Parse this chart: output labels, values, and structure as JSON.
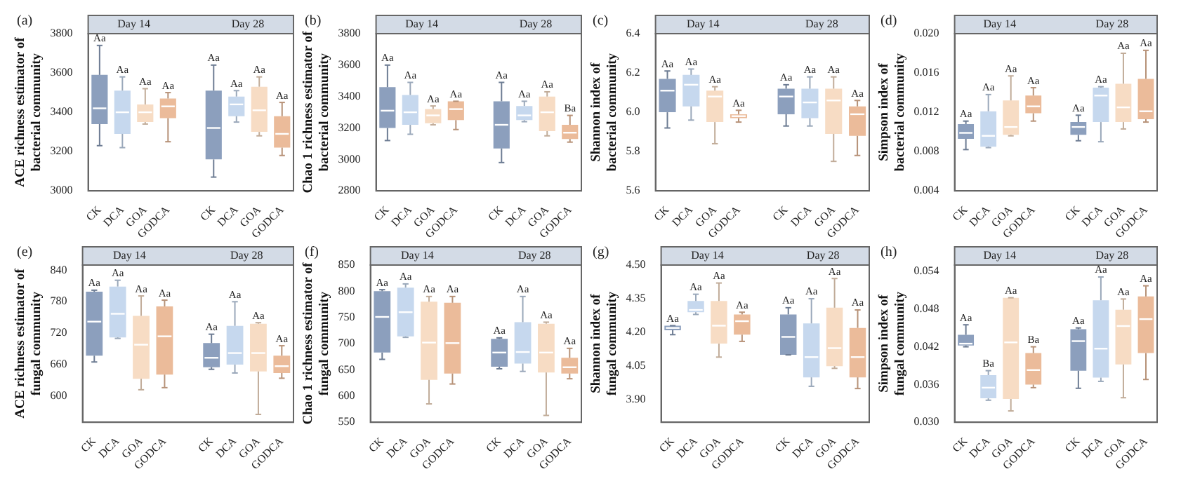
{
  "chart_data": [
    {
      "type": "box",
      "title": "(a)",
      "ylabel": "ACE richness estimator of\nbacterial community",
      "categories": [
        "CK",
        "DCA",
        "GOA",
        "GODCA",
        null,
        "CK",
        "DCA",
        "GOA",
        "GODCA"
      ],
      "colors": [
        "#8c9fbd",
        "#c6d8ee",
        "#f7dcc4",
        "#ebbb9a",
        null,
        "#8c9fbd",
        "#c6d8ee",
        "#f7dcc4",
        "#ebbb9a"
      ],
      "boxes": [
        {
          "low": 3230,
          "q1": 3340,
          "median": 3420,
          "q3": 3590,
          "high": 3740
        },
        {
          "low": 3220,
          "q1": 3290,
          "median": 3400,
          "q3": 3510,
          "high": 3580
        },
        {
          "low": 3340,
          "q1": 3350,
          "median": 3400,
          "q3": 3440,
          "high": 3520
        },
        {
          "low": 3250,
          "q1": 3370,
          "median": 3430,
          "q3": 3470,
          "high": 3500
        },
        null,
        {
          "low": 3070,
          "q1": 3160,
          "median": 3320,
          "q3": 3510,
          "high": 3640
        },
        {
          "low": 3350,
          "q1": 3380,
          "median": 3440,
          "q3": 3480,
          "high": 3510
        },
        {
          "low": 3280,
          "q1": 3300,
          "median": 3410,
          "q3": 3530,
          "high": 3580
        },
        {
          "low": 3180,
          "q1": 3220,
          "median": 3290,
          "q3": 3380,
          "high": 3450
        }
      ],
      "ylim": [
        3000,
        3800
      ],
      "yticks": [
        3000,
        3200,
        3400,
        3600,
        3800
      ],
      "annotations": [
        "Day 14",
        "Day 28",
        "Aa",
        "Aa",
        "Aa",
        "Aa",
        "Aa",
        "Aa",
        "Aa",
        "Aa"
      ]
    },
    {
      "type": "box",
      "title": "(b)",
      "ylabel": "Chao 1 richness estimator of\nbacterial community",
      "categories": [
        "CK",
        "DCA",
        "GOA",
        "GODCA",
        null,
        "CK",
        "DCA",
        "GOA",
        "GODCA"
      ],
      "colors": [
        "#8c9fbd",
        "#c6d8ee",
        "#f7dcc4",
        "#ebbb9a",
        null,
        "#8c9fbd",
        "#c6d8ee",
        "#f7dcc4",
        "#ebbb9a"
      ],
      "boxes": [
        {
          "low": 3120,
          "q1": 3200,
          "median": 3310,
          "q3": 3460,
          "high": 3600
        },
        {
          "low": 3160,
          "q1": 3220,
          "median": 3300,
          "q3": 3410,
          "high": 3490
        },
        {
          "low": 3220,
          "q1": 3230,
          "median": 3280,
          "q3": 3320,
          "high": 3340
        },
        {
          "low": 3190,
          "q1": 3250,
          "median": 3320,
          "q3": 3370,
          "high": 3370
        },
        null,
        {
          "low": 2980,
          "q1": 3070,
          "median": 3220,
          "q3": 3370,
          "high": 3490
        },
        {
          "low": 3240,
          "q1": 3250,
          "median": 3280,
          "q3": 3340,
          "high": 3370
        },
        {
          "low": 3150,
          "q1": 3180,
          "median": 3300,
          "q3": 3400,
          "high": 3430
        },
        {
          "low": 3110,
          "q1": 3130,
          "median": 3170,
          "q3": 3220,
          "high": 3280
        }
      ],
      "ylim": [
        2800,
        3800
      ],
      "yticks": [
        2800,
        3000,
        3200,
        3400,
        3600,
        3800
      ],
      "annotations": [
        "Day 14",
        "Day 28",
        "Aa",
        "Aa",
        "Aa",
        "Aa",
        "Aa",
        "Aa",
        "Aa",
        "Ba"
      ]
    },
    {
      "type": "box",
      "title": "(c)",
      "ylabel": "Shannon index of\nbacterial community",
      "categories": [
        "CK",
        "DCA",
        "GOA",
        "GODCA",
        null,
        "CK",
        "DCA",
        "GOA",
        "GODCA"
      ],
      "colors": [
        "#8c9fbd",
        "#c6d8ee",
        "#f7dcc4",
        "#ebbb9a",
        null,
        "#8c9fbd",
        "#c6d8ee",
        "#f7dcc4",
        "#ebbb9a"
      ],
      "boxes": [
        {
          "low": 5.92,
          "q1": 6.0,
          "median": 6.11,
          "q3": 6.17,
          "high": 6.21
        },
        {
          "low": 5.96,
          "q1": 6.03,
          "median": 6.14,
          "q3": 6.19,
          "high": 6.22
        },
        {
          "low": 5.84,
          "q1": 5.95,
          "median": 6.08,
          "q3": 6.11,
          "high": 6.13
        },
        {
          "low": 5.95,
          "q1": 5.97,
          "median": 5.98,
          "q3": 5.99,
          "high": 6.01
        },
        null,
        {
          "low": 5.93,
          "q1": 5.99,
          "median": 6.08,
          "q3": 6.12,
          "high": 6.14
        },
        {
          "low": 5.93,
          "q1": 5.97,
          "median": 6.05,
          "q3": 6.12,
          "high": 6.18
        },
        {
          "low": 5.75,
          "q1": 5.89,
          "median": 6.06,
          "q3": 6.12,
          "high": 6.18
        },
        {
          "low": 5.78,
          "q1": 5.88,
          "median": 5.99,
          "q3": 6.03,
          "high": 6.06
        }
      ],
      "ylim": [
        5.6,
        6.4
      ],
      "yticks": [
        5.6,
        5.8,
        {
          "value": 6,
          "label": "6.0"
        },
        6.2,
        6.4
      ],
      "annotations": [
        "Day 14",
        "Day 28",
        "Aa",
        "Aa",
        "Aa",
        "Aa",
        "Aa",
        "Aa",
        "Aa",
        "Aa"
      ]
    },
    {
      "type": "box",
      "title": "(d)",
      "ylabel": "Simpson index of\nbacterial community",
      "categories": [
        "CK",
        "DCA",
        "GOA",
        "GODCA",
        null,
        "CK",
        "DCA",
        "GOA",
        "GODCA"
      ],
      "colors": [
        "#8c9fbd",
        "#c6d8ee",
        "#f7dcc4",
        "#ebbb9a",
        null,
        "#8c9fbd",
        "#c6d8ee",
        "#f7dcc4",
        "#ebbb9a"
      ],
      "boxes": [
        {
          "low": 0.0082,
          "q1": 0.0093,
          "median": 0.0099,
          "q3": 0.0108,
          "high": 0.0111
        },
        {
          "low": 0.0084,
          "q1": 0.0085,
          "median": 0.0096,
          "q3": 0.0121,
          "high": 0.0138
        },
        {
          "low": 0.0096,
          "q1": 0.0097,
          "median": 0.0105,
          "q3": 0.0132,
          "high": 0.0157
        },
        {
          "low": 0.0111,
          "q1": 0.0119,
          "median": 0.0126,
          "q3": 0.0137,
          "high": 0.0145
        },
        null,
        {
          "low": 0.0091,
          "q1": 0.0097,
          "median": 0.0105,
          "q3": 0.011,
          "high": 0.0117
        },
        {
          "low": 0.009,
          "q1": 0.011,
          "median": 0.0137,
          "q3": 0.0145,
          "high": 0.0146
        },
        {
          "low": 0.0103,
          "q1": 0.011,
          "median": 0.0125,
          "q3": 0.0149,
          "high": 0.018
        },
        {
          "low": 0.011,
          "q1": 0.0113,
          "median": 0.0121,
          "q3": 0.0154,
          "high": 0.0183
        }
      ],
      "ylim": [
        0.004,
        0.02
      ],
      "yticks": [
        0.004,
        0.008,
        0.012,
        0.016,
        {
          "value": 0.02,
          "label": "0.020"
        }
      ],
      "annotations": [
        "Day 14",
        "Day 28",
        "Aa",
        "Aa",
        "Aa",
        "Aa",
        "Aa",
        "Aa",
        "Aa",
        "Aa"
      ]
    },
    {
      "type": "box",
      "title": "(e)",
      "ylabel": "ACE richness estimator of\nfungal community",
      "categories": [
        "CK",
        "DCA",
        "GOA",
        "GODCA",
        null,
        "CK",
        "DCA",
        "GOA",
        "GODCA"
      ],
      "colors": [
        "#8c9fbd",
        "#c6d8ee",
        "#f7dcc4",
        "#ebbb9a",
        null,
        "#8c9fbd",
        "#c6d8ee",
        "#f7dcc4",
        "#ebbb9a"
      ],
      "boxes": [
        {
          "low": 665,
          "q1": 677,
          "median": 742,
          "q3": 799,
          "high": 802
        },
        {
          "low": 710,
          "q1": 712,
          "median": 757,
          "q3": 809,
          "high": 821
        },
        {
          "low": 612,
          "q1": 633,
          "median": 698,
          "q3": 753,
          "high": 791
        },
        {
          "low": 616,
          "q1": 641,
          "median": 714,
          "q3": 771,
          "high": 783
        },
        null,
        {
          "low": 651,
          "q1": 655,
          "median": 673,
          "q3": 701,
          "high": 718
        },
        {
          "low": 644,
          "q1": 660,
          "median": 682,
          "q3": 734,
          "high": 780
        },
        {
          "low": 565,
          "q1": 647,
          "median": 682,
          "q3": 738,
          "high": 740
        },
        {
          "low": 634,
          "q1": 644,
          "median": 657,
          "q3": 677,
          "high": 696
        }
      ],
      "ylim": [
        550,
        850
      ],
      "yticks": [
        600,
        660,
        720,
        780,
        840
      ],
      "annotations": [
        "Day 14",
        "Day 28",
        "Aa",
        "Aa",
        "Aa",
        "Aa",
        "Aa",
        "Aa",
        "Aa",
        "Aa"
      ]
    },
    {
      "type": "box",
      "title": "(f)",
      "ylabel": "Chao 1 richness estimator of\nfungal community",
      "categories": [
        "CK",
        "DCA",
        "GOA",
        "GODCA",
        null,
        "CK",
        "DCA",
        "GOA",
        "GODCA"
      ],
      "colors": [
        "#8c9fbd",
        "#c6d8ee",
        "#f7dcc4",
        "#ebbb9a",
        null,
        "#8c9fbd",
        "#c6d8ee",
        "#f7dcc4",
        "#ebbb9a"
      ],
      "boxes": [
        {
          "low": 670,
          "q1": 683,
          "median": 751,
          "q3": 800,
          "high": 803
        },
        {
          "low": 712,
          "q1": 714,
          "median": 760,
          "q3": 807,
          "high": 814
        },
        {
          "low": 585,
          "q1": 631,
          "median": 702,
          "q3": 780,
          "high": 790
        },
        {
          "low": 623,
          "q1": 643,
          "median": 701,
          "q3": 778,
          "high": 790
        },
        null,
        {
          "low": 652,
          "q1": 656,
          "median": 683,
          "q3": 709,
          "high": 711
        },
        {
          "low": 647,
          "q1": 662,
          "median": 684,
          "q3": 741,
          "high": 790
        },
        {
          "low": 563,
          "q1": 645,
          "median": 683,
          "q3": 738,
          "high": 741
        },
        {
          "low": 633,
          "q1": 643,
          "median": 655,
          "q3": 673,
          "high": 691
        }
      ],
      "ylim": [
        550,
        850
      ],
      "yticks": [
        550,
        600,
        650,
        700,
        750,
        800,
        850
      ],
      "annotations": [
        "Day 14",
        "Day 28",
        "Aa",
        "Aa",
        "Aa",
        "Aa",
        "Aa",
        "Aa",
        "Aa",
        "Aa"
      ]
    },
    {
      "type": "box",
      "title": "(g)",
      "ylabel": "Shannon index of\nfungal community",
      "categories": [
        "CK",
        "DCA",
        "GOA",
        "GODCA",
        null,
        "CK",
        "DCA",
        "GOA",
        "GODCA"
      ],
      "colors": [
        "#8c9fbd",
        "#c6d8ee",
        "#f7dcc4",
        "#ebbb9a",
        null,
        "#8c9fbd",
        "#c6d8ee",
        "#f7dcc4",
        "#ebbb9a"
      ],
      "boxes": [
        {
          "low": 4.19,
          "q1": 4.21,
          "median": 4.22,
          "q3": 4.23,
          "high": 4.23
        },
        {
          "low": 4.28,
          "q1": 4.29,
          "median": 4.3,
          "q3": 4.34,
          "high": 4.37
        },
        {
          "low": 4.09,
          "q1": 4.15,
          "median": 4.23,
          "q3": 4.34,
          "high": 4.42
        },
        {
          "low": 4.16,
          "q1": 4.19,
          "median": 4.25,
          "q3": 4.28,
          "high": 4.29
        },
        null,
        {
          "low": 4.1,
          "q1": 4.1,
          "median": 4.18,
          "q3": 4.28,
          "high": 4.31
        },
        {
          "low": 3.96,
          "q1": 4.0,
          "median": 4.09,
          "q3": 4.24,
          "high": 4.35
        },
        {
          "low": 4.04,
          "q1": 4.05,
          "median": 4.13,
          "q3": 4.31,
          "high": 4.44
        },
        {
          "low": 3.95,
          "q1": 4.0,
          "median": 4.09,
          "q3": 4.22,
          "high": 4.3
        }
      ],
      "ylim": [
        3.8,
        4.5
      ],
      "yticks": [
        {
          "value": 3.9,
          "label": "3.90"
        },
        4.05,
        {
          "value": 4.2,
          "label": "4.20"
        },
        4.35,
        {
          "value": 4.5,
          "label": "4.50"
        }
      ],
      "annotations": [
        "Day 14",
        "Day 28",
        "Aa",
        "Aa",
        "Aa",
        "Aa",
        "Aa",
        "Aa",
        "Aa",
        "Aa"
      ]
    },
    {
      "type": "box",
      "title": "(h)",
      "ylabel": "Simpson index of\nfungal community",
      "categories": [
        "CK",
        "DCA",
        "GOA",
        "GODCA",
        null,
        "CK",
        "DCA",
        "GOA",
        "GODCA"
      ],
      "colors": [
        "#8c9fbd",
        "#c6d8ee",
        "#f7dcc4",
        "#ebbb9a",
        null,
        "#8c9fbd",
        "#c6d8ee",
        "#f7dcc4",
        "#ebbb9a"
      ],
      "boxes": [
        {
          "low": 0.042,
          "q1": 0.0422,
          "median": 0.0425,
          "q3": 0.0439,
          "high": 0.0455
        },
        {
          "low": 0.0335,
          "q1": 0.0338,
          "median": 0.0355,
          "q3": 0.0375,
          "high": 0.0382
        },
        {
          "low": 0.0318,
          "q1": 0.0337,
          "median": 0.0427,
          "q3": 0.0498,
          "high": 0.0498
        },
        {
          "low": 0.0355,
          "q1": 0.036,
          "median": 0.0383,
          "q3": 0.041,
          "high": 0.042
        },
        null,
        {
          "low": 0.0354,
          "q1": 0.0382,
          "median": 0.0429,
          "q3": 0.0448,
          "high": 0.045
        },
        {
          "low": 0.0365,
          "q1": 0.0371,
          "median": 0.0417,
          "q3": 0.0494,
          "high": 0.0531
        },
        {
          "low": 0.0339,
          "q1": 0.0392,
          "median": 0.0453,
          "q3": 0.0479,
          "high": 0.0496
        },
        {
          "low": 0.0368,
          "q1": 0.041,
          "median": 0.0464,
          "q3": 0.05,
          "high": 0.0517
        }
      ],
      "ylim": [
        0.03,
        0.055
      ],
      "yticks": [
        {
          "value": 0.03,
          "label": "0.030"
        },
        0.036,
        0.042,
        0.048,
        0.054
      ],
      "annotations": [
        "Day 14",
        "Day 28",
        "Aa",
        "Ba",
        "Aa",
        "Ba",
        "Aa",
        "Aa",
        "Aa",
        "Aa"
      ]
    }
  ]
}
